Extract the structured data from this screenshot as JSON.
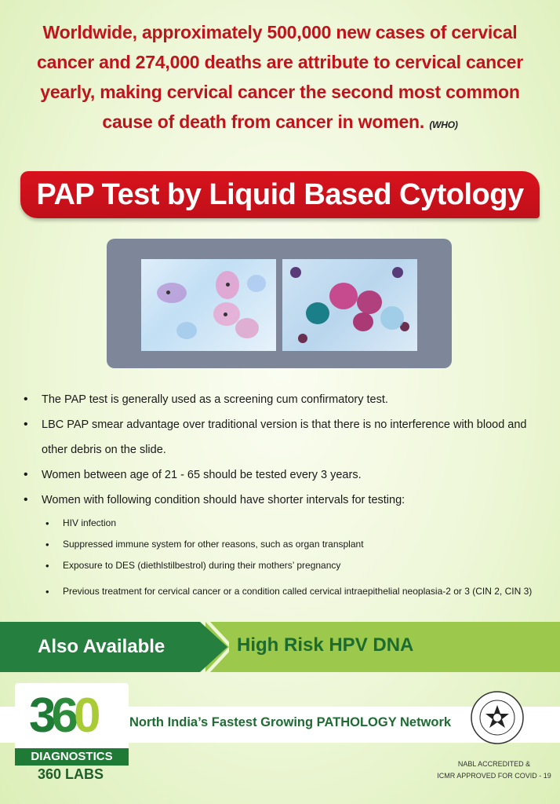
{
  "intro": {
    "line1": "Worldwide, approximately 500,000 new cases of cervical",
    "line2": "cancer and 274,000 deaths are attribute to cervical cancer",
    "line3": "yearly, making cervical cancer the second most common",
    "line4": "cause of death from cancer in women.",
    "source": "(WHO)"
  },
  "banner": {
    "title": "PAP Test by Liquid Based Cytology"
  },
  "points": [
    "The PAP test is generally used as a screening cum confirmatory test.",
    "LBC PAP smear advantage over traditional version is that there is no interference with blood and other debris on the slide.",
    "Women between age of 21 - 65 should be tested every 3 years.",
    "Women with following condition should have shorter intervals for testing:"
  ],
  "conditions": [
    "HIV infection",
    "Suppressed immune system for other reasons, such as organ transplant",
    "Exposure to DES (diethlstilbestrol) during their mothers’ pregnancy",
    "Previous treatment for cervical cancer or a condition called cervical intraepithelial neoplasia-2 or 3 (CIN 2, CIN 3)"
  ],
  "availability": {
    "label": "Also Available",
    "item": "High Risk HPV DNA"
  },
  "brand": {
    "logo_number": "360",
    "logo_digits": [
      "3",
      "6",
      "0"
    ],
    "logo_band": "DIAGNOSTICS",
    "labs": "360 LABS",
    "tagline": "North India’s Fastest Growing PATHOLOGY Network"
  },
  "accreditation": {
    "line1": "NABL ACCREDITED &",
    "line2": "ICMR APPROVED FOR COVID - 19"
  },
  "colors": {
    "headline_red": "#c0141c",
    "banner_red": "#d8121c",
    "brand_green": "#1f7a35",
    "light_green": "#9cc94b",
    "background": "#eef7d8"
  }
}
